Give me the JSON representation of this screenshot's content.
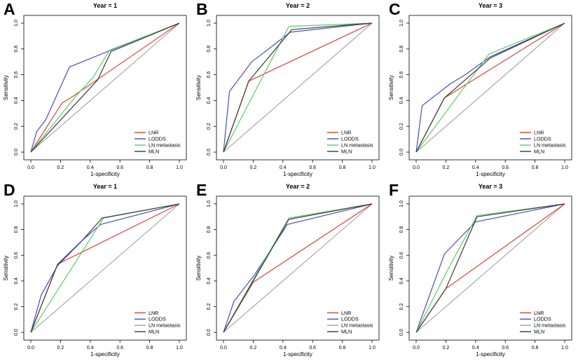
{
  "figure": {
    "background": "#ffffff",
    "axis_color": "#000000",
    "diagonal_color": "#9a9a9a",
    "xlabel": "1-specificity",
    "ylabel": "Sensitivity",
    "tick_labels": [
      "0.0",
      "0.2",
      "0.4",
      "0.6",
      "0.8",
      "1.0"
    ],
    "legend_labels": [
      "LNR",
      "LODDS",
      "LN metastasis",
      "MLN"
    ],
    "series_colors": {
      "LNR": "#d9453a",
      "LODDS": "#4a4ac2",
      "LN metastasis": "#5ecb68",
      "MLN": "#3a3a3a"
    }
  },
  "chart_data": [
    {
      "panel_label": "A",
      "title": "Year = 1",
      "type": "line",
      "xlabel": "1-specificity",
      "ylabel": "Sensitivity",
      "xlim": [
        0,
        1
      ],
      "ylim": [
        0,
        1
      ],
      "diagonal": true,
      "legend_position": "bottom-right",
      "series": [
        {
          "name": "LNR",
          "color": "#d9453a",
          "points": [
            [
              0,
              0
            ],
            [
              0.21,
              0.38
            ],
            [
              0.28,
              0.43
            ],
            [
              1,
              1
            ]
          ]
        },
        {
          "name": "LODDS",
          "color": "#4a4ac2",
          "points": [
            [
              0,
              0
            ],
            [
              0.04,
              0.16
            ],
            [
              0.1,
              0.25
            ],
            [
              0.26,
              0.66
            ],
            [
              0.56,
              0.8
            ],
            [
              1,
              1
            ]
          ]
        },
        {
          "name": "LN metastasis",
          "color": "#5ecb68",
          "points": [
            [
              0,
              0
            ],
            [
              0.3,
              0.43
            ],
            [
              0.42,
              0.58
            ],
            [
              0.53,
              0.79
            ],
            [
              1,
              1
            ]
          ]
        },
        {
          "name": "MLN",
          "color": "#3a3a3a",
          "points": [
            [
              0,
              0
            ],
            [
              0.45,
              0.56
            ],
            [
              0.54,
              0.78
            ],
            [
              1,
              1
            ]
          ]
        }
      ]
    },
    {
      "panel_label": "B",
      "title": "Year = 2",
      "type": "line",
      "xlabel": "1-specificity",
      "ylabel": "Sensitivity",
      "xlim": [
        0,
        1
      ],
      "ylim": [
        0,
        1
      ],
      "diagonal": true,
      "legend_position": "bottom-right",
      "series": [
        {
          "name": "LNR",
          "color": "#d9453a",
          "points": [
            [
              0,
              0
            ],
            [
              0.17,
              0.55
            ],
            [
              1,
              1
            ]
          ]
        },
        {
          "name": "LODDS",
          "color": "#4a4ac2",
          "points": [
            [
              0,
              0
            ],
            [
              0.04,
              0.47
            ],
            [
              0.19,
              0.7
            ],
            [
              0.27,
              0.77
            ],
            [
              0.45,
              0.93
            ],
            [
              1,
              1
            ]
          ]
        },
        {
          "name": "LN metastasis",
          "color": "#5ecb68",
          "points": [
            [
              0,
              0
            ],
            [
              0.44,
              0.975
            ],
            [
              1,
              1
            ]
          ]
        },
        {
          "name": "MLN",
          "color": "#3a3a3a",
          "points": [
            [
              0,
              0
            ],
            [
              0.17,
              0.55
            ],
            [
              0.46,
              0.95
            ],
            [
              1,
              1
            ]
          ]
        }
      ]
    },
    {
      "panel_label": "C",
      "title": "Year = 3",
      "type": "line",
      "xlabel": "1-specificity",
      "ylabel": "Sensitivity",
      "xlim": [
        0,
        1
      ],
      "ylim": [
        0,
        1
      ],
      "diagonal": true,
      "legend_position": "bottom-right",
      "series": [
        {
          "name": "LNR",
          "color": "#d9453a",
          "points": [
            [
              0,
              0
            ],
            [
              0.19,
              0.42
            ],
            [
              1,
              1
            ]
          ]
        },
        {
          "name": "LODDS",
          "color": "#4a4ac2",
          "points": [
            [
              0,
              0
            ],
            [
              0.04,
              0.36
            ],
            [
              0.23,
              0.53
            ],
            [
              0.33,
              0.6
            ],
            [
              0.5,
              0.74
            ],
            [
              1,
              1
            ]
          ]
        },
        {
          "name": "LN metastasis",
          "color": "#5ecb68",
          "points": [
            [
              0,
              0
            ],
            [
              0.49,
              0.76
            ],
            [
              1,
              1
            ]
          ]
        },
        {
          "name": "MLN",
          "color": "#3a3a3a",
          "points": [
            [
              0,
              0
            ],
            [
              0.19,
              0.42
            ],
            [
              0.5,
              0.73
            ],
            [
              1,
              1
            ]
          ]
        }
      ]
    },
    {
      "panel_label": "D",
      "title": "Year = 1",
      "type": "line",
      "xlabel": "1-specificity",
      "ylabel": "Sensitivity",
      "xlim": [
        0,
        1
      ],
      "ylim": [
        0,
        1
      ],
      "diagonal": true,
      "legend_position": "bottom-right",
      "series": [
        {
          "name": "LNR",
          "color": "#d9453a",
          "points": [
            [
              0,
              0
            ],
            [
              0.18,
              0.53
            ],
            [
              0.23,
              0.56
            ],
            [
              1,
              1
            ]
          ]
        },
        {
          "name": "LODDS",
          "color": "#4a4ac2",
          "points": [
            [
              0,
              0
            ],
            [
              0.07,
              0.29
            ],
            [
              0.18,
              0.52
            ],
            [
              0.35,
              0.72
            ],
            [
              0.47,
              0.84
            ],
            [
              1,
              1
            ]
          ]
        },
        {
          "name": "LN metastasis",
          "color": "#5ecb68",
          "points": [
            [
              0,
              0
            ],
            [
              0.49,
              0.89
            ],
            [
              1,
              1
            ]
          ]
        },
        {
          "name": "MLN",
          "color": "#3a3a3a",
          "points": [
            [
              0,
              0
            ],
            [
              0.18,
              0.53
            ],
            [
              0.35,
              0.72
            ],
            [
              0.48,
              0.89
            ],
            [
              1,
              1
            ]
          ]
        }
      ]
    },
    {
      "panel_label": "E",
      "title": "Year = 2",
      "type": "line",
      "xlabel": "1-specificity",
      "ylabel": "Sensitivity",
      "xlim": [
        0,
        1
      ],
      "ylim": [
        0,
        1
      ],
      "diagonal": true,
      "legend_position": "bottom-right",
      "series": [
        {
          "name": "LNR",
          "color": "#d9453a",
          "points": [
            [
              0,
              0
            ],
            [
              0.2,
              0.39
            ],
            [
              1,
              1
            ]
          ]
        },
        {
          "name": "LODDS",
          "color": "#4a4ac2",
          "points": [
            [
              0,
              0
            ],
            [
              0.07,
              0.24
            ],
            [
              0.21,
              0.45
            ],
            [
              0.43,
              0.84
            ],
            [
              1,
              1
            ]
          ]
        },
        {
          "name": "LN metastasis",
          "color": "#5ecb68",
          "points": [
            [
              0,
              0
            ],
            [
              0.2,
              0.41
            ],
            [
              0.44,
              0.89
            ],
            [
              1,
              1
            ]
          ]
        },
        {
          "name": "MLN",
          "color": "#3a3a3a",
          "points": [
            [
              0,
              0
            ],
            [
              0.2,
              0.4
            ],
            [
              0.44,
              0.88
            ],
            [
              1,
              1
            ]
          ]
        }
      ]
    },
    {
      "panel_label": "F",
      "title": "Year = 3",
      "type": "line",
      "xlabel": "1-specificity",
      "ylabel": "Sensitivity",
      "xlim": [
        0,
        1
      ],
      "ylim": [
        0,
        1
      ],
      "diagonal": true,
      "legend_position": "bottom-right",
      "series": [
        {
          "name": "LNR",
          "color": "#d9453a",
          "points": [
            [
              0,
              0
            ],
            [
              0.2,
              0.34
            ],
            [
              1,
              1
            ]
          ]
        },
        {
          "name": "LODDS",
          "color": "#4a4ac2",
          "points": [
            [
              0,
              0
            ],
            [
              0.19,
              0.61
            ],
            [
              0.4,
              0.86
            ],
            [
              1,
              1
            ]
          ]
        },
        {
          "name": "LN metastasis",
          "color": "#5ecb68",
          "points": [
            [
              0,
              0
            ],
            [
              0.2,
              0.46
            ],
            [
              0.41,
              0.91
            ],
            [
              1,
              1
            ]
          ]
        },
        {
          "name": "MLN",
          "color": "#3a3a3a",
          "points": [
            [
              0,
              0
            ],
            [
              0.2,
              0.34
            ],
            [
              0.41,
              0.9
            ],
            [
              1,
              1
            ]
          ]
        }
      ]
    }
  ]
}
